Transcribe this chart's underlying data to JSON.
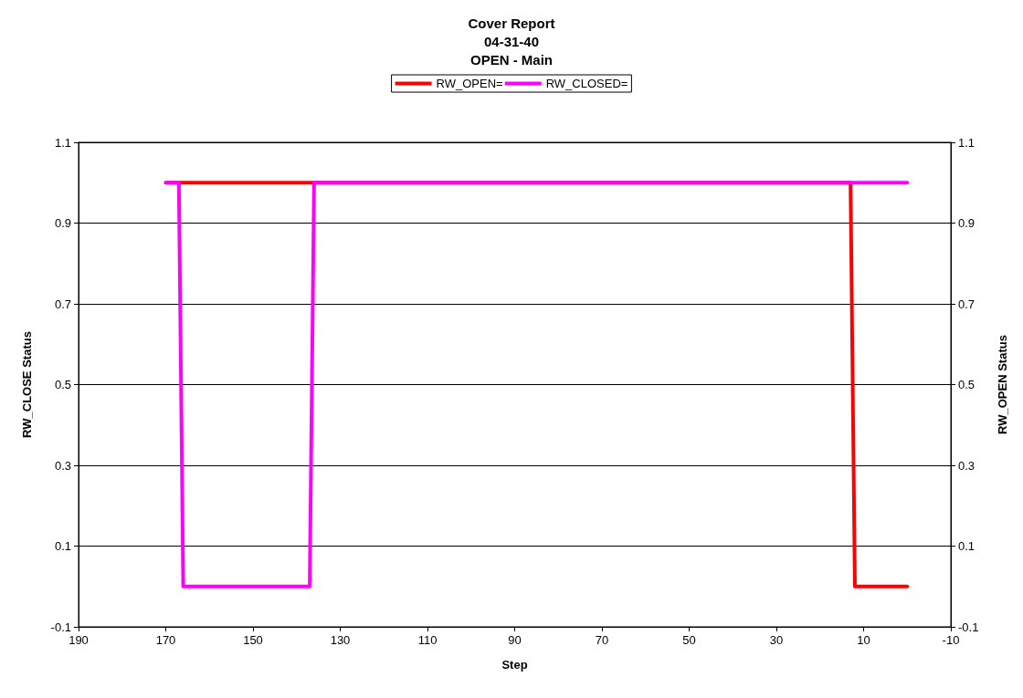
{
  "chart_data": {
    "type": "line",
    "title": "Cover Report\n04-31-40\nOPEN - Main",
    "xlabel": "Step",
    "ylabel": "RW_CLOSE Status",
    "y2label": "RW_OPEN Status",
    "xlim": [
      190,
      -10
    ],
    "xticks": [
      190,
      170,
      150,
      130,
      110,
      90,
      70,
      50,
      30,
      10,
      -10
    ],
    "ylim": [
      -0.1,
      1.1
    ],
    "yticks": [
      -0.1,
      0.1,
      0.3,
      0.5,
      0.7,
      0.9,
      1.1
    ],
    "y2lim": [
      -0.1,
      1.1
    ],
    "y2ticks": [
      -0.1,
      0.1,
      0.3,
      0.5,
      0.7,
      0.9,
      1.1
    ],
    "grid": "y",
    "legend": "top",
    "marker": "none",
    "line_style": "solid",
    "series": [
      {
        "name": "RW_OPEN=",
        "color": "#ff0000",
        "x": [
          170,
          13,
          12,
          0
        ],
        "values": [
          1,
          1,
          0,
          0
        ]
      },
      {
        "name": "RW_CLOSED=",
        "color": "#ff00ff",
        "x": [
          170,
          167,
          166,
          137,
          136,
          0
        ],
        "values": [
          1,
          1,
          0,
          0,
          1,
          1
        ]
      }
    ]
  }
}
